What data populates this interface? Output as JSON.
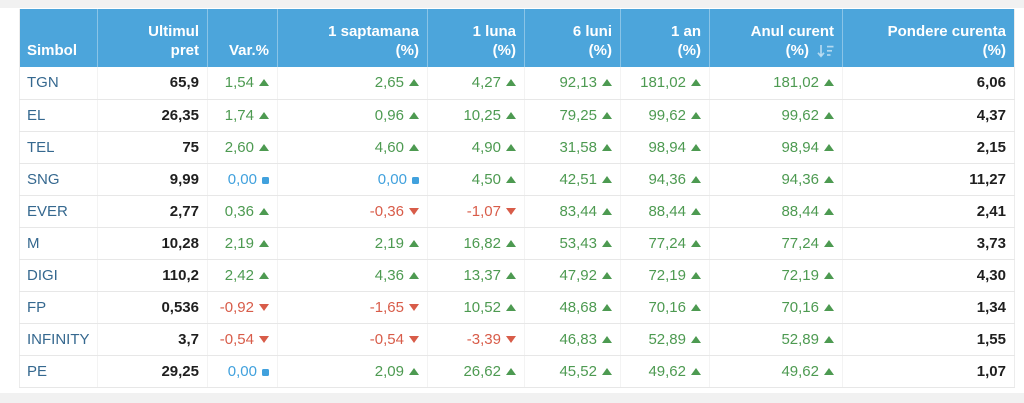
{
  "colors": {
    "header_bg": "#4ca5db",
    "header_text": "#ffffff",
    "symbol_text": "#35688f",
    "positive": "#4d9a51",
    "negative": "#d85c49",
    "neutral": "#41a1dd",
    "value_text": "#1f1f1f"
  },
  "table": {
    "sorted_by": "Anul curent (%)",
    "sort_icon": "sort-descending-icon",
    "columns": [
      {
        "id": "symbol",
        "label_lines": [
          "Simbol"
        ],
        "align": "left"
      },
      {
        "id": "last",
        "label_lines": [
          "Ultimul",
          "pret"
        ],
        "align": "right"
      },
      {
        "id": "var",
        "label_lines": [
          "Var.%"
        ],
        "align": "right"
      },
      {
        "id": "w1",
        "label_lines": [
          "1 saptamana",
          "(%)"
        ],
        "align": "right"
      },
      {
        "id": "m1",
        "label_lines": [
          "1 luna",
          "(%)"
        ],
        "align": "right"
      },
      {
        "id": "m6",
        "label_lines": [
          "6 luni",
          "(%)"
        ],
        "align": "right"
      },
      {
        "id": "y1",
        "label_lines": [
          "1 an",
          "(%)"
        ],
        "align": "right"
      },
      {
        "id": "ytd",
        "label_lines": [
          "Anul curent",
          "(%)"
        ],
        "align": "right",
        "sort_icon": "sort-descending-icon"
      },
      {
        "id": "weight",
        "label_lines": [
          "Pondere curenta",
          "(%)"
        ],
        "align": "right"
      }
    ],
    "rows": [
      {
        "symbol": "TGN",
        "last": "65,9",
        "var": {
          "v": "1,54",
          "dir": "up"
        },
        "w1": {
          "v": "2,65",
          "dir": "up"
        },
        "m1": {
          "v": "4,27",
          "dir": "up"
        },
        "m6": {
          "v": "92,13",
          "dir": "up"
        },
        "y1": {
          "v": "181,02",
          "dir": "up"
        },
        "ytd": {
          "v": "181,02",
          "dir": "up"
        },
        "weight": "6,06"
      },
      {
        "symbol": "EL",
        "last": "26,35",
        "var": {
          "v": "1,74",
          "dir": "up"
        },
        "w1": {
          "v": "0,96",
          "dir": "up"
        },
        "m1": {
          "v": "10,25",
          "dir": "up"
        },
        "m6": {
          "v": "79,25",
          "dir": "up"
        },
        "y1": {
          "v": "99,62",
          "dir": "up"
        },
        "ytd": {
          "v": "99,62",
          "dir": "up"
        },
        "weight": "4,37"
      },
      {
        "symbol": "TEL",
        "last": "75",
        "var": {
          "v": "2,60",
          "dir": "up"
        },
        "w1": {
          "v": "4,60",
          "dir": "up"
        },
        "m1": {
          "v": "4,90",
          "dir": "up"
        },
        "m6": {
          "v": "31,58",
          "dir": "up"
        },
        "y1": {
          "v": "98,94",
          "dir": "up"
        },
        "ytd": {
          "v": "98,94",
          "dir": "up"
        },
        "weight": "2,15"
      },
      {
        "symbol": "SNG",
        "last": "9,99",
        "var": {
          "v": "0,00",
          "dir": "flat"
        },
        "w1": {
          "v": "0,00",
          "dir": "flat"
        },
        "m1": {
          "v": "4,50",
          "dir": "up"
        },
        "m6": {
          "v": "42,51",
          "dir": "up"
        },
        "y1": {
          "v": "94,36",
          "dir": "up"
        },
        "ytd": {
          "v": "94,36",
          "dir": "up"
        },
        "weight": "11,27"
      },
      {
        "symbol": "EVER",
        "last": "2,77",
        "var": {
          "v": "0,36",
          "dir": "up"
        },
        "w1": {
          "v": "-0,36",
          "dir": "down"
        },
        "m1": {
          "v": "-1,07",
          "dir": "down"
        },
        "m6": {
          "v": "83,44",
          "dir": "up"
        },
        "y1": {
          "v": "88,44",
          "dir": "up"
        },
        "ytd": {
          "v": "88,44",
          "dir": "up"
        },
        "weight": "2,41"
      },
      {
        "symbol": "M",
        "last": "10,28",
        "var": {
          "v": "2,19",
          "dir": "up"
        },
        "w1": {
          "v": "2,19",
          "dir": "up"
        },
        "m1": {
          "v": "16,82",
          "dir": "up"
        },
        "m6": {
          "v": "53,43",
          "dir": "up"
        },
        "y1": {
          "v": "77,24",
          "dir": "up"
        },
        "ytd": {
          "v": "77,24",
          "dir": "up"
        },
        "weight": "3,73"
      },
      {
        "symbol": "DIGI",
        "last": "110,2",
        "var": {
          "v": "2,42",
          "dir": "up"
        },
        "w1": {
          "v": "4,36",
          "dir": "up"
        },
        "m1": {
          "v": "13,37",
          "dir": "up"
        },
        "m6": {
          "v": "47,92",
          "dir": "up"
        },
        "y1": {
          "v": "72,19",
          "dir": "up"
        },
        "ytd": {
          "v": "72,19",
          "dir": "up"
        },
        "weight": "4,30"
      },
      {
        "symbol": "FP",
        "last": "0,536",
        "var": {
          "v": "-0,92",
          "dir": "down"
        },
        "w1": {
          "v": "-1,65",
          "dir": "down"
        },
        "m1": {
          "v": "10,52",
          "dir": "up"
        },
        "m6": {
          "v": "48,68",
          "dir": "up"
        },
        "y1": {
          "v": "70,16",
          "dir": "up"
        },
        "ytd": {
          "v": "70,16",
          "dir": "up"
        },
        "weight": "1,34"
      },
      {
        "symbol": "INFINITY",
        "last": "3,7",
        "var": {
          "v": "-0,54",
          "dir": "down"
        },
        "w1": {
          "v": "-0,54",
          "dir": "down"
        },
        "m1": {
          "v": "-3,39",
          "dir": "down"
        },
        "m6": {
          "v": "46,83",
          "dir": "up"
        },
        "y1": {
          "v": "52,89",
          "dir": "up"
        },
        "ytd": {
          "v": "52,89",
          "dir": "up"
        },
        "weight": "1,55"
      },
      {
        "symbol": "PE",
        "last": "29,25",
        "var": {
          "v": "0,00",
          "dir": "flat"
        },
        "w1": {
          "v": "2,09",
          "dir": "up"
        },
        "m1": {
          "v": "26,62",
          "dir": "up"
        },
        "m6": {
          "v": "45,52",
          "dir": "up"
        },
        "y1": {
          "v": "49,62",
          "dir": "up"
        },
        "ytd": {
          "v": "49,62",
          "dir": "up"
        },
        "weight": "1,07"
      }
    ]
  }
}
